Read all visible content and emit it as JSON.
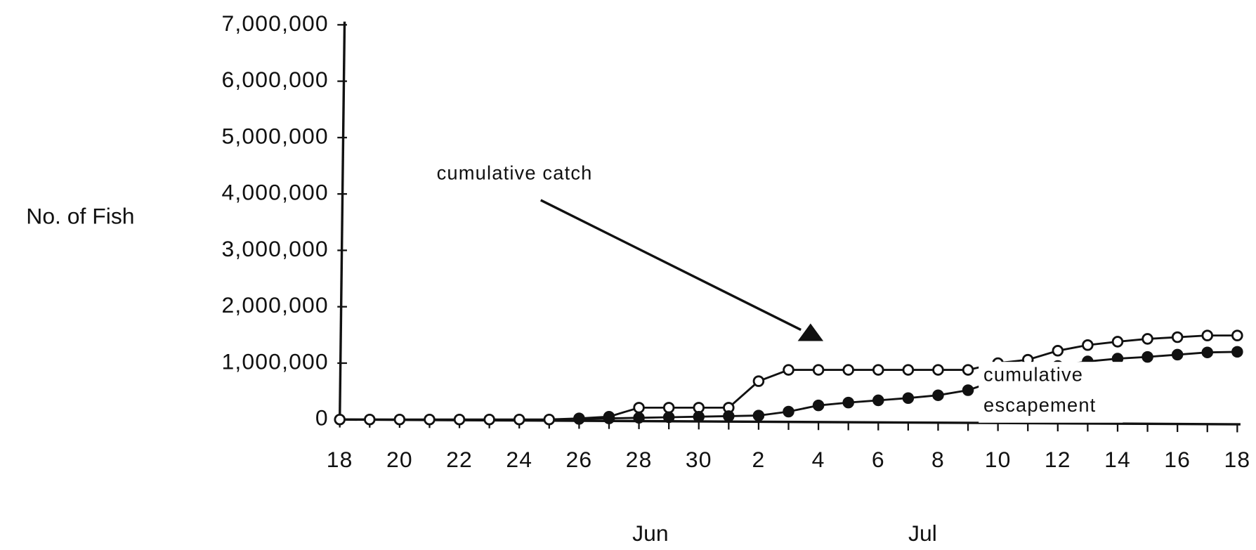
{
  "chart_data": {
    "type": "line",
    "y_label": "No. of Fish",
    "categories": [
      "18",
      null,
      "20",
      null,
      "22",
      null,
      "24",
      null,
      "26",
      null,
      "28",
      null,
      "30",
      null,
      "2",
      null,
      "4",
      null,
      "6",
      null,
      "8",
      null,
      "10",
      null,
      "12",
      null,
      "14",
      null,
      "16",
      null,
      "18"
    ],
    "x_group_labels": [
      "Jun",
      "Jul"
    ],
    "ylim": [
      0,
      7000000
    ],
    "yticks": [
      0,
      {
        "value": 1000000,
        "label": "1,000,000"
      },
      {
        "value": 2000000,
        "label": "2,000,000"
      },
      {
        "value": 3000000,
        "label": "3,000,000"
      },
      {
        "value": 4000000,
        "label": "4,000,000"
      },
      {
        "value": 5000000,
        "label": "5,000,000"
      },
      {
        "value": 6000000,
        "label": "6,000,000"
      },
      {
        "value": 7000000,
        "label": "7,000,000"
      }
    ],
    "grid": false,
    "series": [
      {
        "name": "cumulative catch",
        "color": "#111",
        "marker_fill": "#fff",
        "values": [
          0,
          0,
          0,
          0,
          0,
          0,
          0,
          0,
          20000,
          50000,
          210000,
          210000,
          210000,
          210000,
          680000,
          880000,
          880000,
          880000,
          880000,
          880000,
          880000,
          880000,
          1000000,
          1060000,
          1220000,
          1320000,
          1380000,
          1430000,
          1460000,
          1490000,
          1490000
        ]
      },
      {
        "name": "cumulative escapement",
        "color": "#111",
        "marker_fill": "#111",
        "values": [
          null,
          null,
          null,
          null,
          null,
          null,
          null,
          null,
          10000,
          20000,
          30000,
          40000,
          50000,
          60000,
          70000,
          140000,
          250000,
          300000,
          340000,
          380000,
          430000,
          520000,
          700000,
          850000,
          950000,
          1030000,
          1080000,
          1110000,
          1150000,
          1190000,
          1200000
        ]
      }
    ]
  }
}
